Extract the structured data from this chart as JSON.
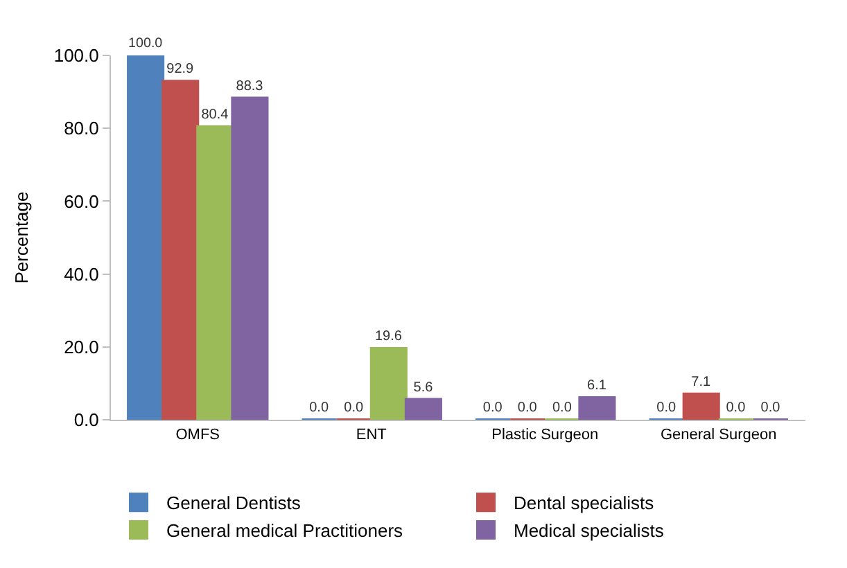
{
  "chart_data": {
    "type": "bar",
    "ylabel": "Percentage",
    "categories": [
      "OMFS",
      "ENT",
      "Plastic Surgeon",
      "General Surgeon"
    ],
    "series": [
      {
        "name": "General Dentists",
        "color": "#4f81bd",
        "values": [
          100.0,
          0.0,
          0.0,
          0.0
        ],
        "value_labels": [
          "100.0",
          "0.0",
          "0.0",
          "0.0"
        ]
      },
      {
        "name": "Dental specialists",
        "color": "#c0504d",
        "values": [
          92.9,
          0.0,
          0.0,
          7.1
        ],
        "value_labels": [
          "92.9",
          "0.0",
          "0.0",
          "7.1"
        ]
      },
      {
        "name": "General medical Practitioners",
        "color": "#9bbb59",
        "values": [
          80.4,
          19.6,
          0.0,
          0.0
        ],
        "value_labels": [
          "80.4",
          "19.6",
          "0.0",
          "0.0"
        ]
      },
      {
        "name": "Medical specialists",
        "color": "#8064a2",
        "values": [
          88.3,
          5.6,
          6.1,
          0.0
        ],
        "value_labels": [
          "88.3",
          "5.6",
          "6.1",
          "0.0"
        ]
      }
    ],
    "ylim": [
      0,
      100
    ],
    "yticks": [
      {
        "value": 0,
        "label": "0.0"
      },
      {
        "value": 20,
        "label": "20.0"
      },
      {
        "value": 40,
        "label": "40.0"
      },
      {
        "value": 60,
        "label": "60.0"
      },
      {
        "value": 80,
        "label": "80.0"
      },
      {
        "value": 100,
        "label": "100.0"
      }
    ],
    "legend": "bottom"
  }
}
